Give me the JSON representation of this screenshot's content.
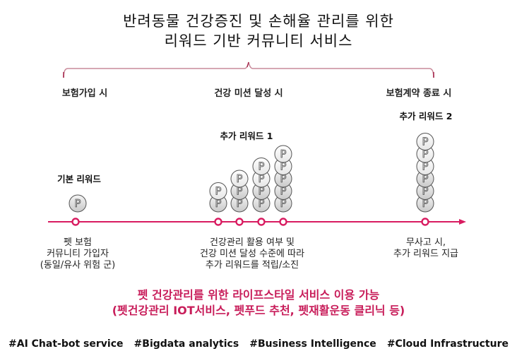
{
  "title": {
    "line1": "반려동물 건강증진 및 손해율 관리를 위한",
    "line2": "리워드 기반 커뮤니티 서비스"
  },
  "colors": {
    "timeline": "#d81b60",
    "brace": "#c98a9a",
    "banner_text": "#c81d5a",
    "coin_fill_dark": "#cfcfcf",
    "coin_fill_light": "#ffffff",
    "coin_stroke": "#555555"
  },
  "stages": [
    {
      "label": "보험가입 시",
      "reward_label": "기본 리워드",
      "description": [
        "펫 보험",
        "커뮤니티 가입자",
        "(동일/유사 위험 군)"
      ]
    },
    {
      "label": "건강 미션 달성 시",
      "reward_label": "추가 리워드 1",
      "description": [
        "건강관리 활용 여부 및",
        "건강 미션 달성 수준에 따라",
        "추가 리워드를 적립/소진"
      ]
    },
    {
      "label": "보험계약 종료 시",
      "reward_label": "추가 리워드 2",
      "description": [
        "무사고 시,",
        "추가 리워드 지급"
      ]
    }
  ],
  "coin_symbol": "P",
  "coin_stacks": [
    {
      "stage": 0,
      "count": 1
    },
    {
      "stage": 1,
      "count": 2
    },
    {
      "stage": 1,
      "count": 3
    },
    {
      "stage": 1,
      "count": 4
    },
    {
      "stage": 1,
      "count": 5
    },
    {
      "stage": 2,
      "count": 6
    }
  ],
  "banner": {
    "line1": "펫 건강관리를 위한 라이프스타일 서비스 이용 가능",
    "line2": "(펫건강관리 IOT서비스, 펫푸드 추천, 펫재활운동 클리닉 등)"
  },
  "tags": [
    "#AI Chat-bot service",
    "#Bigdata analytics",
    "#Business Intelligence",
    "#Cloud Infrastructure"
  ]
}
